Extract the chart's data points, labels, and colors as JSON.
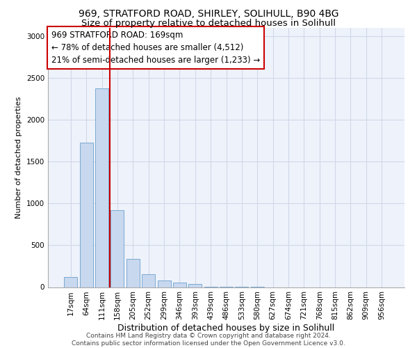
{
  "title1": "969, STRATFORD ROAD, SHIRLEY, SOLIHULL, B90 4BG",
  "title2": "Size of property relative to detached houses in Solihull",
  "xlabel": "Distribution of detached houses by size in Solihull",
  "ylabel": "Number of detached properties",
  "categories": [
    "17sqm",
    "64sqm",
    "111sqm",
    "158sqm",
    "205sqm",
    "252sqm",
    "299sqm",
    "346sqm",
    "393sqm",
    "439sqm",
    "486sqm",
    "533sqm",
    "580sqm",
    "627sqm",
    "674sqm",
    "721sqm",
    "768sqm",
    "815sqm",
    "862sqm",
    "909sqm",
    "956sqm"
  ],
  "values": [
    120,
    1730,
    2380,
    920,
    340,
    150,
    80,
    55,
    40,
    8,
    4,
    2,
    2,
    0,
    0,
    0,
    0,
    0,
    0,
    0,
    0
  ],
  "bar_color": "#c8d8ef",
  "bar_edge_color": "#7aaad0",
  "vline_x": 2.5,
  "vline_color": "#cc0000",
  "annotation_text": "969 STRATFORD ROAD: 169sqm\n← 78% of detached houses are smaller (4,512)\n21% of semi-detached houses are larger (1,233) →",
  "annotation_box_color": "#ffffff",
  "annotation_box_edge": "#cc0000",
  "ylim": [
    0,
    3100
  ],
  "yticks": [
    0,
    500,
    1000,
    1500,
    2000,
    2500,
    3000
  ],
  "grid_color": "#d0d8e8",
  "bg_color": "#eef2fb",
  "footnote": "Contains HM Land Registry data © Crown copyright and database right 2024.\nContains public sector information licensed under the Open Government Licence v3.0.",
  "title_fontsize": 10,
  "subtitle_fontsize": 9.5,
  "xlabel_fontsize": 9,
  "ylabel_fontsize": 8,
  "tick_fontsize": 7.5,
  "annot_fontsize": 8.5,
  "footnote_fontsize": 6.5
}
